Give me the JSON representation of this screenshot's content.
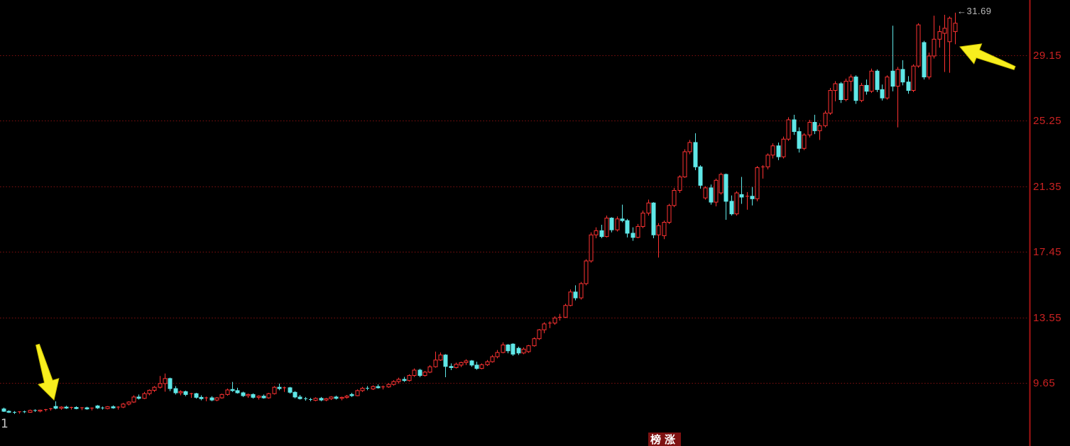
{
  "window": {
    "background": "#000000"
  },
  "chart_data": {
    "type": "candlestick",
    "title": "",
    "xlabel": "",
    "ylabel": "",
    "legend": "none",
    "grid": {
      "on": true,
      "style": "dotted-horizontal",
      "color": "#7c0f0f"
    },
    "colors": {
      "up_candle": "#ff3232",
      "down_candle": "#5fe7e7",
      "axis_line": "#a51414",
      "axis_text": "#cc2222",
      "background": "#000000",
      "annotation_arrow": "#f7ee1e",
      "peak_text": "#b9b9b9"
    },
    "y_axis": {
      "side": "right",
      "labels": [
        "29.15",
        "25.25",
        "21.35",
        "17.45",
        "13.55",
        "9.65"
      ],
      "label_values": [
        29.15,
        25.25,
        21.35,
        17.45,
        13.55,
        9.65
      ]
    },
    "candles_ohlc": [
      [
        8.1,
        8.18,
        7.92,
        7.96
      ],
      [
        7.96,
        8.02,
        7.86,
        7.9
      ],
      [
        7.9,
        7.97,
        7.8,
        7.88
      ],
      [
        7.88,
        7.96,
        7.82,
        7.93
      ],
      [
        7.93,
        8.0,
        7.85,
        7.9
      ],
      [
        7.9,
        8.06,
        7.87,
        8.01
      ],
      [
        8.01,
        8.08,
        7.92,
        7.97
      ],
      [
        7.97,
        8.06,
        7.9,
        8.03
      ],
      [
        8.03,
        8.1,
        7.95,
        8.06
      ],
      [
        8.06,
        8.15,
        8.0,
        8.11
      ],
      [
        8.25,
        8.55,
        8.08,
        8.14
      ],
      [
        8.14,
        8.26,
        8.05,
        8.21
      ],
      [
        8.21,
        8.29,
        8.1,
        8.15
      ],
      [
        8.15,
        8.23,
        8.06,
        8.19
      ],
      [
        8.19,
        8.26,
        8.08,
        8.12
      ],
      [
        8.12,
        8.21,
        8.03,
        8.17
      ],
      [
        8.17,
        8.23,
        8.05,
        8.1
      ],
      [
        8.1,
        8.19,
        8.01,
        8.15
      ],
      [
        8.28,
        8.33,
        8.1,
        8.16
      ],
      [
        8.16,
        8.24,
        8.06,
        8.12
      ],
      [
        8.12,
        8.27,
        8.08,
        8.23
      ],
      [
        8.23,
        8.31,
        8.11,
        8.16
      ],
      [
        8.16,
        8.26,
        8.06,
        8.21
      ],
      [
        8.21,
        8.46,
        8.15,
        8.39
      ],
      [
        8.39,
        8.56,
        8.31,
        8.51
      ],
      [
        8.51,
        8.91,
        8.46,
        8.81
      ],
      [
        8.81,
        8.96,
        8.66,
        8.73
      ],
      [
        8.73,
        9.11,
        8.69,
        9.01
      ],
      [
        9.01,
        9.26,
        8.91,
        9.21
      ],
      [
        9.21,
        9.46,
        9.11,
        9.39
      ],
      [
        9.39,
        10.06,
        9.31,
        9.61
      ],
      [
        9.61,
        10.21,
        9.13,
        9.91
      ],
      [
        9.91,
        9.96,
        9.16,
        9.31
      ],
      [
        9.31,
        9.46,
        8.96,
        9.06
      ],
      [
        9.06,
        9.21,
        8.91,
        9.13
      ],
      [
        9.13,
        9.19,
        8.86,
        8.96
      ],
      [
        8.96,
        9.06,
        8.76,
        9.01
      ],
      [
        9.01,
        9.06,
        8.71,
        8.79
      ],
      [
        8.79,
        8.91,
        8.61,
        8.71
      ],
      [
        8.71,
        8.83,
        8.56,
        8.76
      ],
      [
        8.76,
        8.86,
        8.56,
        8.63
      ],
      [
        8.63,
        8.81,
        8.56,
        8.76
      ],
      [
        8.76,
        9.01,
        8.71,
        8.96
      ],
      [
        8.96,
        9.31,
        8.89,
        9.23
      ],
      [
        9.26,
        9.71,
        9.11,
        9.19
      ],
      [
        9.19,
        9.36,
        9.01,
        9.06
      ],
      [
        9.06,
        9.13,
        8.81,
        8.89
      ],
      [
        8.89,
        9.01,
        8.76,
        8.96
      ],
      [
        8.96,
        9.03,
        8.71,
        8.79
      ],
      [
        8.79,
        8.91,
        8.66,
        8.86
      ],
      [
        8.86,
        8.96,
        8.71,
        8.76
      ],
      [
        8.76,
        9.06,
        8.71,
        9.01
      ],
      [
        9.01,
        9.46,
        8.96,
        9.39
      ],
      [
        9.39,
        9.61,
        9.21,
        9.31
      ],
      [
        9.31,
        9.43,
        9.11,
        9.36
      ],
      [
        9.36,
        9.41,
        9.01,
        9.09
      ],
      [
        9.09,
        9.16,
        8.73,
        8.81
      ],
      [
        8.81,
        8.93,
        8.66,
        8.71
      ],
      [
        8.71,
        8.81,
        8.59,
        8.66
      ],
      [
        8.66,
        8.76,
        8.56,
        8.61
      ],
      [
        8.61,
        8.79,
        8.56,
        8.73
      ],
      [
        8.73,
        8.81,
        8.56,
        8.63
      ],
      [
        8.63,
        8.76,
        8.56,
        8.71
      ],
      [
        8.71,
        8.86,
        8.63,
        8.81
      ],
      [
        8.81,
        8.89,
        8.66,
        8.73
      ],
      [
        8.73,
        8.83,
        8.61,
        8.79
      ],
      [
        8.79,
        8.93,
        8.71,
        8.86
      ],
      [
        8.96,
        9.06,
        8.81,
        8.89
      ],
      [
        8.89,
        9.26,
        8.86,
        9.19
      ],
      [
        9.19,
        9.41,
        9.11,
        9.33
      ],
      [
        9.33,
        9.46,
        9.21,
        9.29
      ],
      [
        9.29,
        9.51,
        9.23,
        9.43
      ],
      [
        9.43,
        9.56,
        9.31,
        9.36
      ],
      [
        9.36,
        9.49,
        9.26,
        9.41
      ],
      [
        9.41,
        9.63,
        9.36,
        9.56
      ],
      [
        9.56,
        9.81,
        9.49,
        9.73
      ],
      [
        9.73,
        9.96,
        9.61,
        9.86
      ],
      [
        9.86,
        10.01,
        9.71,
        9.79
      ],
      [
        9.79,
        10.16,
        9.73,
        10.09
      ],
      [
        10.09,
        10.51,
        10.01,
        10.41
      ],
      [
        10.41,
        10.49,
        9.99,
        10.09
      ],
      [
        10.09,
        10.36,
        10.03,
        10.29
      ],
      [
        10.29,
        10.71,
        10.23,
        10.61
      ],
      [
        10.61,
        11.51,
        10.56,
        11.01
      ],
      [
        11.01,
        11.46,
        10.96,
        11.31
      ],
      [
        11.31,
        11.36,
        9.99,
        10.63
      ],
      [
        10.63,
        10.81,
        10.41,
        10.56
      ],
      [
        10.56,
        10.86,
        10.51,
        10.76
      ],
      [
        10.71,
        10.91,
        10.59,
        10.86
      ],
      [
        10.86,
        11.06,
        10.71,
        10.96
      ],
      [
        10.96,
        11.01,
        10.61,
        10.71
      ],
      [
        10.71,
        10.91,
        10.43,
        10.51
      ],
      [
        10.51,
        10.81,
        10.46,
        10.73
      ],
      [
        10.73,
        11.01,
        10.66,
        10.91
      ],
      [
        10.91,
        11.31,
        10.86,
        11.21
      ],
      [
        11.21,
        11.61,
        11.11,
        11.46
      ],
      [
        11.46,
        12.06,
        11.41,
        11.91
      ],
      [
        11.91,
        11.96,
        11.41,
        11.56
      ],
      [
        11.96,
        12.01,
        11.26,
        11.36
      ],
      [
        11.71,
        11.81,
        11.31,
        11.43
      ],
      [
        11.43,
        11.76,
        11.36,
        11.66
      ],
      [
        11.51,
        11.91,
        11.44,
        11.86
      ],
      [
        11.86,
        12.36,
        11.81,
        12.28
      ],
      [
        12.28,
        12.86,
        12.21,
        12.81
      ],
      [
        12.81,
        13.26,
        12.61,
        13.16
      ],
      [
        13.16,
        13.31,
        12.91,
        13.21
      ],
      [
        13.21,
        13.61,
        13.11,
        13.51
      ],
      [
        13.51,
        13.76,
        13.36,
        13.56
      ],
      [
        13.56,
        14.36,
        13.51,
        14.26
      ],
      [
        14.26,
        15.21,
        14.21,
        15.06
      ],
      [
        15.06,
        15.46,
        14.56,
        14.71
      ],
      [
        14.71,
        15.66,
        14.61,
        15.56
      ],
      [
        15.56,
        17.01,
        15.46,
        16.91
      ],
      [
        16.91,
        18.61,
        16.81,
        18.46
      ],
      [
        18.46,
        18.91,
        18.26,
        18.71
      ],
      [
        18.71,
        19.06,
        18.26,
        18.36
      ],
      [
        18.36,
        19.61,
        18.31,
        19.46
      ],
      [
        19.46,
        19.51,
        18.61,
        18.76
      ],
      [
        18.76,
        19.56,
        18.66,
        19.41
      ],
      [
        19.41,
        20.26,
        19.21,
        19.31
      ],
      [
        19.31,
        19.41,
        18.31,
        18.56
      ],
      [
        18.56,
        18.91,
        18.11,
        18.31
      ],
      [
        18.31,
        19.11,
        18.26,
        18.96
      ],
      [
        18.96,
        19.91,
        18.86,
        19.76
      ],
      [
        19.76,
        20.56,
        19.61,
        20.36
      ],
      [
        20.36,
        20.41,
        18.26,
        18.46
      ],
      [
        18.46,
        19.16,
        17.11,
        19.01
      ],
      [
        18.41,
        19.31,
        18.21,
        19.21
      ],
      [
        19.21,
        20.31,
        19.11,
        20.21
      ],
      [
        20.21,
        21.26,
        20.11,
        21.11
      ],
      [
        21.11,
        22.01,
        20.96,
        21.91
      ],
      [
        21.91,
        23.56,
        21.86,
        23.41
      ],
      [
        23.41,
        24.11,
        23.26,
        23.96
      ],
      [
        23.96,
        24.51,
        22.31,
        22.51
      ],
      [
        22.51,
        22.61,
        21.21,
        21.41
      ],
      [
        20.66,
        21.36,
        20.56,
        21.26
      ],
      [
        21.26,
        21.46,
        20.26,
        20.41
      ],
      [
        20.41,
        21.81,
        20.16,
        21.71
      ],
      [
        20.96,
        22.16,
        20.86,
        22.06
      ],
      [
        22.06,
        22.11,
        19.36,
        20.46
      ],
      [
        20.46,
        20.81,
        19.61,
        19.71
      ],
      [
        19.71,
        21.06,
        19.61,
        20.96
      ],
      [
        20.86,
        21.91,
        20.31,
        20.71
      ],
      [
        20.71,
        21.01,
        19.96,
        20.76
      ],
      [
        20.76,
        21.31,
        20.21,
        20.61
      ],
      [
        20.61,
        22.56,
        20.46,
        22.46
      ],
      [
        22.46,
        22.61,
        21.81,
        22.51
      ],
      [
        22.51,
        23.31,
        22.36,
        23.21
      ],
      [
        23.21,
        23.91,
        23.01,
        23.76
      ],
      [
        23.76,
        23.96,
        22.91,
        23.11
      ],
      [
        23.11,
        24.31,
        23.01,
        24.16
      ],
      [
        24.16,
        25.46,
        24.06,
        25.31
      ],
      [
        25.31,
        25.61,
        24.41,
        24.61
      ],
      [
        24.61,
        24.86,
        23.36,
        23.61
      ],
      [
        23.61,
        24.51,
        23.51,
        24.41
      ],
      [
        24.41,
        25.31,
        24.26,
        25.16
      ],
      [
        25.16,
        25.61,
        24.46,
        24.66
      ],
      [
        24.66,
        25.11,
        24.11,
        24.96
      ],
      [
        24.96,
        25.86,
        24.86,
        25.71
      ],
      [
        25.71,
        27.21,
        25.61,
        27.06
      ],
      [
        27.06,
        27.61,
        26.41,
        27.46
      ],
      [
        27.46,
        27.56,
        26.31,
        26.51
      ],
      [
        26.51,
        27.76,
        26.41,
        27.61
      ],
      [
        27.61,
        28.01,
        27.01,
        27.86
      ],
      [
        27.86,
        27.96,
        26.26,
        26.46
      ],
      [
        26.46,
        27.51,
        26.36,
        27.36
      ],
      [
        27.36,
        27.71,
        26.81,
        27.01
      ],
      [
        27.01,
        28.36,
        26.91,
        28.21
      ],
      [
        28.21,
        28.31,
        26.96,
        27.11
      ],
      [
        27.11,
        27.41,
        26.46,
        26.61
      ],
      [
        26.61,
        27.96,
        26.51,
        27.86
      ],
      [
        28.21,
        30.91,
        27.01,
        27.31
      ],
      [
        27.31,
        28.46,
        24.86,
        28.31
      ],
      [
        28.31,
        28.86,
        27.36,
        27.56
      ],
      [
        27.56,
        27.91,
        26.86,
        27.06
      ],
      [
        27.06,
        28.61,
        26.96,
        28.51
      ],
      [
        28.51,
        31.06,
        28.41,
        30.96
      ],
      [
        29.91,
        30.01,
        27.71,
        27.86
      ],
      [
        27.86,
        29.31,
        27.71,
        29.11
      ],
      [
        29.11,
        31.51,
        28.96,
        30.11
      ],
      [
        30.11,
        30.91,
        29.61,
        30.56
      ],
      [
        30.46,
        31.56,
        28.16,
        30.76
      ],
      [
        29.96,
        31.46,
        28.11,
        31.36
      ],
      [
        30.56,
        31.69,
        29.81,
        31.06
      ]
    ],
    "annotations": {
      "peak": {
        "pointer": "←",
        "text": "31.69"
      },
      "index_marker": {
        "text": "1"
      },
      "bottom_badge": {
        "text": "榜涨"
      },
      "arrows": [
        {
          "name": "arrow-top-right",
          "from": [
            1429,
            96
          ],
          "to": [
            1352,
            66
          ]
        },
        {
          "name": "arrow-bottom-left",
          "from": [
            53,
            486
          ],
          "to": [
            76,
            564
          ]
        }
      ]
    }
  }
}
